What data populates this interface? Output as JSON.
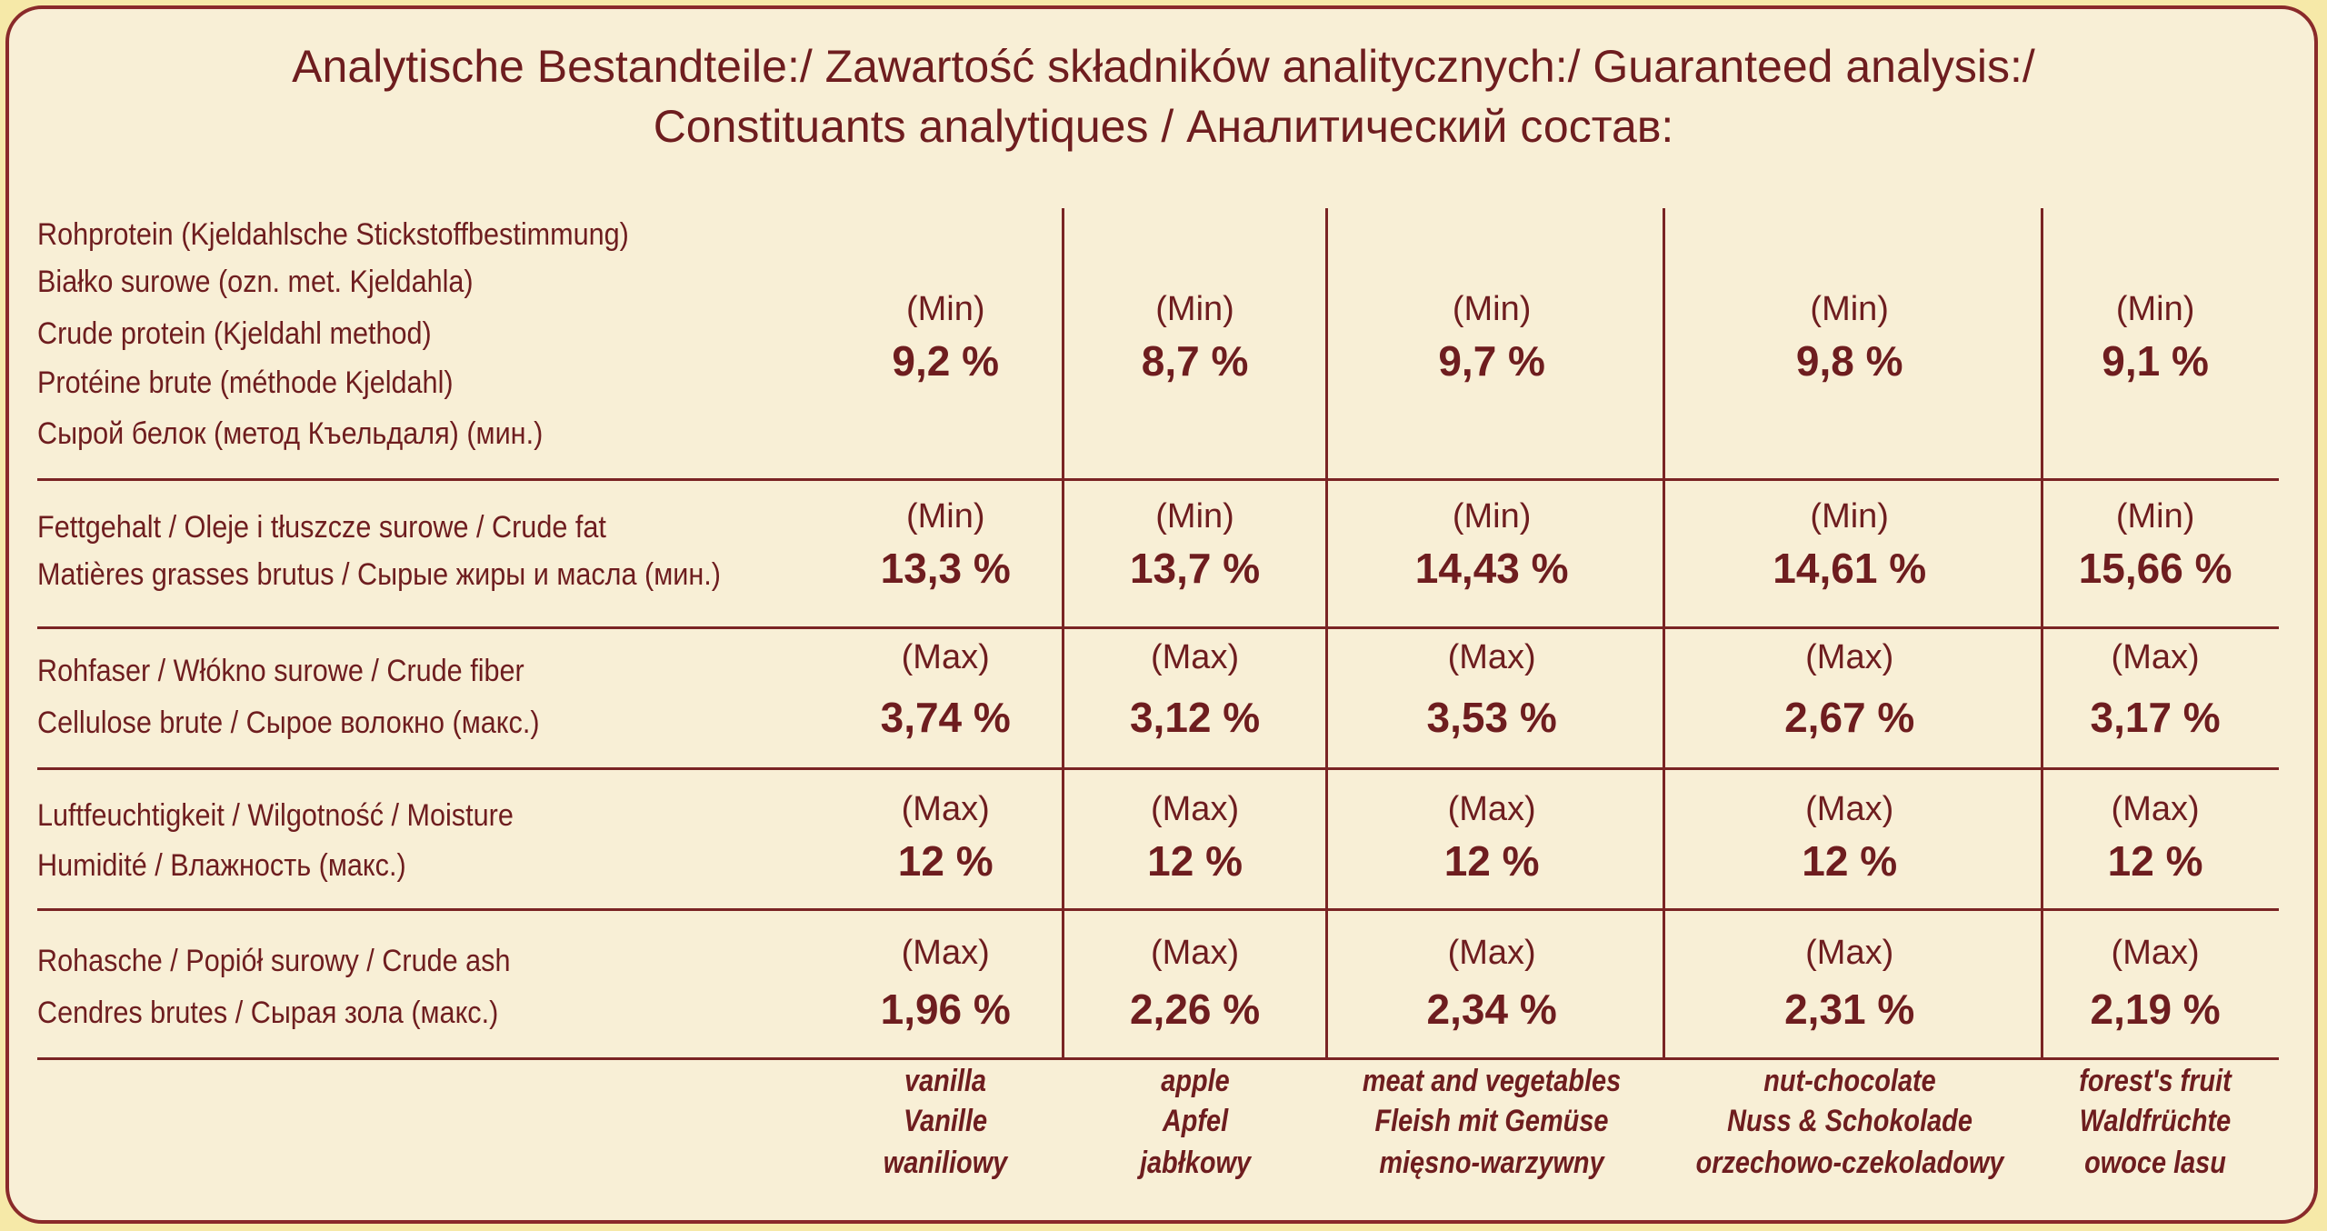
{
  "title": [
    "Analytische Bestandteile:/ Zawartość składników analitycznych:/ Guaranteed analysis:/",
    "Constituants analytiques / Аналитический состав:"
  ],
  "rows": [
    {
      "label": [
        "Rohprotein (Kjeldahlsche Stickstoffbestimmung)",
        "Białko surowe (ozn. met. Kjeldahla)",
        "Crude protein (Kjeldahl method)",
        "Protéine brute (méthode Kjeldahl)",
        "Сырой белок (метод Къельдаля) (мин.)"
      ],
      "cells": [
        {
          "qualifier": "(Min)",
          "value": "9,2 %"
        },
        {
          "qualifier": "(Min)",
          "value": "8,7 %"
        },
        {
          "qualifier": "(Min)",
          "value": "9,7 %"
        },
        {
          "qualifier": "(Min)",
          "value": "9,8 %"
        },
        {
          "qualifier": "(Min)",
          "value": "9,1 %"
        }
      ]
    },
    {
      "label": [
        "Fettgehalt / Oleje i tłuszcze surowe / Crude fat",
        "Matières grasses brutus / Сырые жиры и масла (мин.)"
      ],
      "cells": [
        {
          "qualifier": "(Min)",
          "value": "13,3 %"
        },
        {
          "qualifier": "(Min)",
          "value": "13,7 %"
        },
        {
          "qualifier": "(Min)",
          "value": "14,43 %"
        },
        {
          "qualifier": "(Min)",
          "value": "14,61 %"
        },
        {
          "qualifier": "(Min)",
          "value": "15,66 %"
        }
      ]
    },
    {
      "label": [
        "Rohfaser / Włókno surowe / Crude fiber",
        "Cellulose brute / Сырое волокно (макс.)"
      ],
      "cells": [
        {
          "qualifier": "(Max)",
          "value": "3,74 %"
        },
        {
          "qualifier": "(Max)",
          "value": "3,12 %"
        },
        {
          "qualifier": "(Max)",
          "value": "3,53 %"
        },
        {
          "qualifier": "(Max)",
          "value": "2,67 %"
        },
        {
          "qualifier": "(Max)",
          "value": "3,17 %"
        }
      ]
    },
    {
      "label": [
        "Luftfeuchtigkeit / Wilgotność / Moisture",
        "Humidité / Влажность (макс.)"
      ],
      "cells": [
        {
          "qualifier": "(Max)",
          "value": "12 %"
        },
        {
          "qualifier": "(Max)",
          "value": "12 %"
        },
        {
          "qualifier": "(Max)",
          "value": "12 %"
        },
        {
          "qualifier": "(Max)",
          "value": "12 %"
        },
        {
          "qualifier": "(Max)",
          "value": "12 %"
        }
      ]
    },
    {
      "label": [
        "Rohasche / Popiół surowy / Crude ash",
        "Cendres brutes / Сырая зола (макс.)"
      ],
      "cells": [
        {
          "qualifier": "(Max)",
          "value": "1,96 %"
        },
        {
          "qualifier": "(Max)",
          "value": "2,26 %"
        },
        {
          "qualifier": "(Max)",
          "value": "2,34 %"
        },
        {
          "qualifier": "(Max)",
          "value": "2,31 %"
        },
        {
          "qualifier": "(Max)",
          "value": "2,19 %"
        }
      ]
    }
  ],
  "flavors": [
    [
      "vanilla",
      "Vanille",
      "waniliowy"
    ],
    [
      "apple",
      "Apfel",
      "jabłkowy"
    ],
    [
      "meat and vegetables",
      "Fleish mit Gemüse",
      "mięsno-warzywny"
    ],
    [
      "nut-chocolate",
      "Nuss & Schokolade",
      "orzechowo-czekoladowy"
    ],
    [
      "forest's fruit",
      "Waldfrüchte",
      "owoce lasu"
    ]
  ]
}
